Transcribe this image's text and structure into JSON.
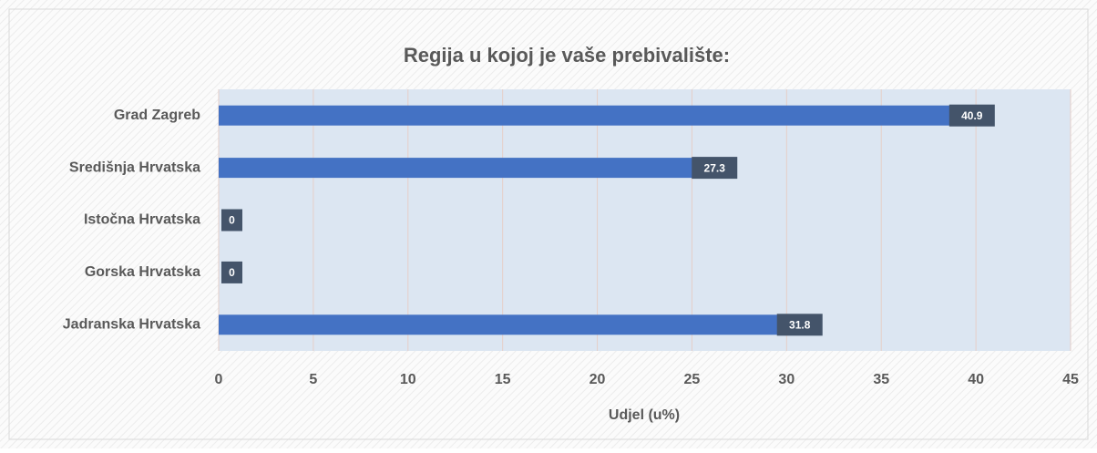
{
  "chart_data": {
    "type": "bar",
    "orientation": "horizontal",
    "title": "Regija u kojoj je vaše prebivalište:",
    "x_label": "Udjel (u%)",
    "categories": [
      "Grad Zagreb",
      "Središnja Hrvatska",
      "Istočna Hrvatska",
      "Gorska Hrvatska",
      "Jadranska Hrvatska"
    ],
    "values": [
      40.9,
      27.3,
      0,
      0,
      31.8
    ],
    "color": "#4472c4",
    "xlim": [
      0,
      45
    ],
    "xticks": [
      0,
      5,
      10,
      15,
      20,
      25,
      30,
      35,
      40,
      45
    ],
    "grid": true
  }
}
